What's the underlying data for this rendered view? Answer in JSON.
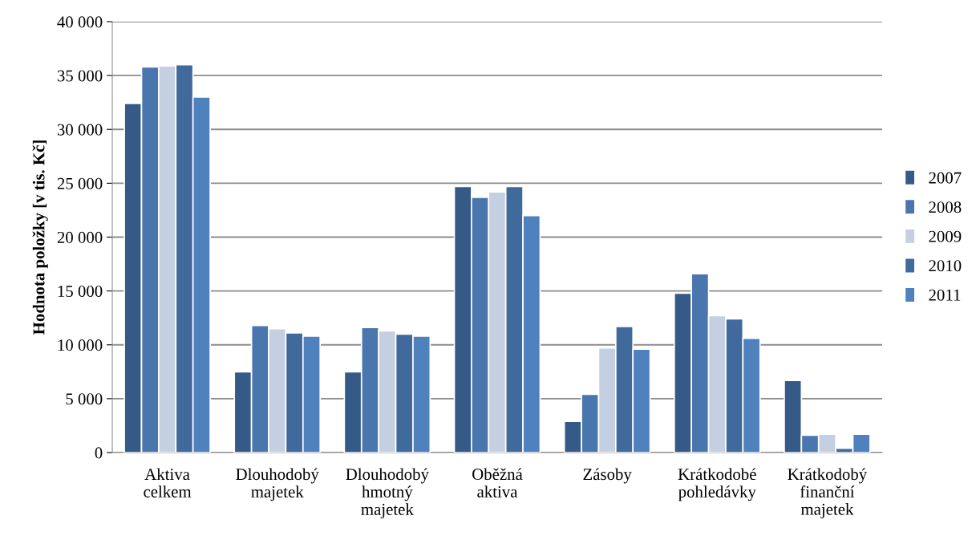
{
  "chart_data": {
    "type": "bar",
    "ylabel": "Hodnota položky [v tis. Kč]",
    "categories": [
      "Aktiva\ncelkem",
      "Dlouhodobý\nmajetek",
      "Dlouhodobý\nhmotný\nmajetek",
      "Oběžná\naktiva",
      "Zásoby",
      "Krátkodobé\npohledávky",
      "Krátkodobý\nfinanční\nmajetek"
    ],
    "series": [
      {
        "name": "2007",
        "color": "#355a88",
        "values": [
          32400,
          7500,
          7500,
          24700,
          2900,
          14800,
          6700
        ]
      },
      {
        "name": "2008",
        "color": "#4a76ae",
        "values": [
          35800,
          11800,
          11600,
          23700,
          5400,
          16600,
          1600
        ]
      },
      {
        "name": "2009",
        "color": "#c4cfe2",
        "values": [
          35900,
          11500,
          11300,
          24200,
          9700,
          12700,
          1700
        ]
      },
      {
        "name": "2010",
        "color": "#40699c",
        "values": [
          36000,
          11100,
          11000,
          24700,
          11700,
          12400,
          400
        ]
      },
      {
        "name": "2011",
        "color": "#4f81bd",
        "values": [
          33000,
          10800,
          10800,
          22000,
          9600,
          10600,
          1700
        ]
      }
    ],
    "ylim": [
      0,
      40000
    ],
    "yticks": [
      {
        "value": 0,
        "label": "0"
      },
      {
        "value": 5000,
        "label": "5 000"
      },
      {
        "value": 10000,
        "label": "10 000"
      },
      {
        "value": 15000,
        "label": "15 000"
      },
      {
        "value": 20000,
        "label": "20 000"
      },
      {
        "value": 25000,
        "label": "25 000"
      },
      {
        "value": 30000,
        "label": "30 000"
      },
      {
        "value": 35000,
        "label": "35 000"
      },
      {
        "value": 40000,
        "label": "40 000"
      }
    ],
    "grid": "y",
    "legend": "right"
  }
}
